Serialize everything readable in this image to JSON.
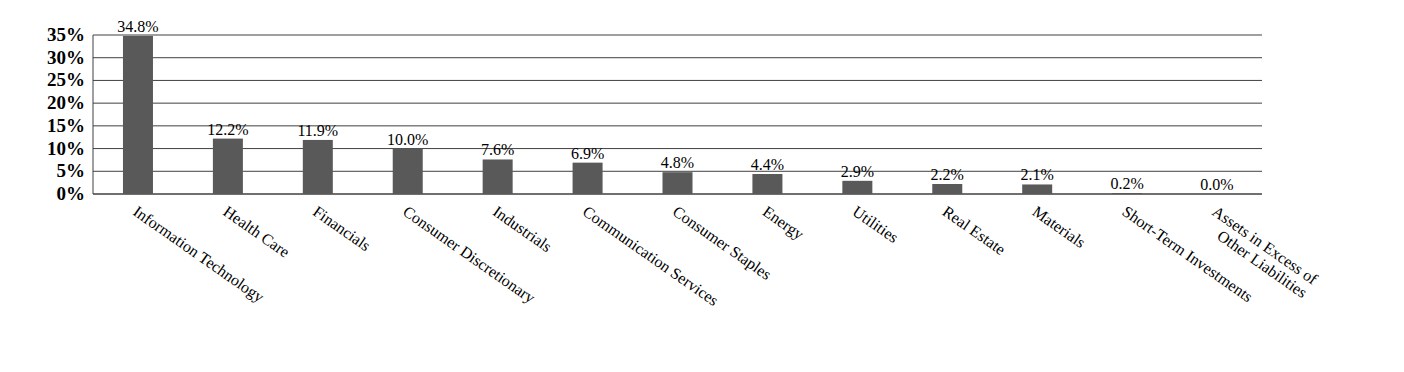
{
  "chart_data": {
    "type": "bar",
    "categories": [
      "Information Technology",
      "Health Care",
      "Financials",
      "Consumer Discretionary",
      "Industrials",
      "Communication Services",
      "Consumer Staples",
      "Energy",
      "Utilities",
      "Real Estate",
      "Materials",
      "Short-Term Investments",
      "Assets in Excess of Other Liabilities"
    ],
    "values": [
      34.8,
      12.2,
      11.9,
      10.0,
      7.6,
      6.9,
      4.8,
      4.4,
      2.9,
      2.2,
      2.1,
      0.2,
      0.0
    ],
    "value_labels": [
      "34.8%",
      "12.2%",
      "11.9%",
      "10.0%",
      "7.6%",
      "6.9%",
      "4.8%",
      "4.4%",
      "2.9%",
      "2.2%",
      "2.1%",
      "0.2%",
      "0.0%"
    ],
    "color": "#595959",
    "ylim": [
      0,
      35
    ],
    "yticks": [
      {
        "value": 0,
        "label": "0%"
      },
      {
        "value": 5,
        "label": "5%"
      },
      {
        "value": 10,
        "label": "10%"
      },
      {
        "value": 15,
        "label": "15%"
      },
      {
        "value": 20,
        "label": "20%"
      },
      {
        "value": 25,
        "label": "25%"
      },
      {
        "value": 30,
        "label": "30%"
      },
      {
        "value": 35,
        "label": "35%"
      }
    ],
    "grid": true,
    "data_labels": true
  }
}
